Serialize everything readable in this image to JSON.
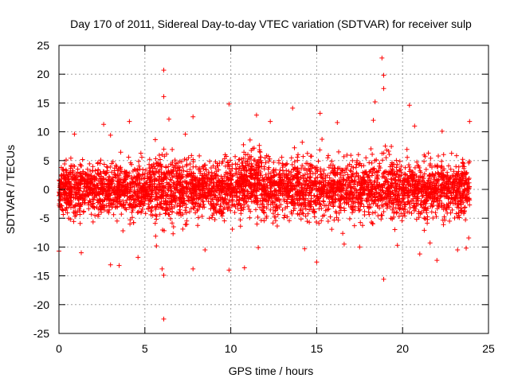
{
  "chart_data": {
    "type": "scatter",
    "title": "Day 170 of 2011, Sidereal Day-to-day VTEC variation (SDTVAR) for receiver sulp",
    "xlabel": "GPS time / hours",
    "ylabel": "SDTVAR / TECUs",
    "xlim": [
      0,
      25
    ],
    "ylim": [
      -25,
      25
    ],
    "xticks": [
      0,
      5,
      10,
      15,
      20,
      25
    ],
    "yticks": [
      -25,
      -20,
      -15,
      -10,
      -5,
      0,
      5,
      10,
      15,
      20,
      25
    ],
    "grid": true,
    "marker": "plus",
    "color": "#ff0000",
    "x_range_of_data": [
      0,
      23.9
    ],
    "typical_band": [
      -7,
      7
    ],
    "notable_points": [
      {
        "x": 6.1,
        "y": 20.7
      },
      {
        "x": 6.1,
        "y": 16.1
      },
      {
        "x": 6.1,
        "y": -22.5
      },
      {
        "x": 6.1,
        "y": -14.9
      },
      {
        "x": 6.0,
        "y": -13.8
      },
      {
        "x": 18.8,
        "y": 22.8
      },
      {
        "x": 18.9,
        "y": 19.8
      },
      {
        "x": 18.9,
        "y": 17.5
      },
      {
        "x": 18.9,
        "y": -15.6
      },
      {
        "x": 18.4,
        "y": 15.2
      },
      {
        "x": 20.4,
        "y": 14.6
      },
      {
        "x": 9.9,
        "y": 14.8
      },
      {
        "x": 13.6,
        "y": 14.1
      },
      {
        "x": 15.2,
        "y": 13.2
      },
      {
        "x": 15.0,
        "y": -12.6
      },
      {
        "x": 9.9,
        "y": -14.0
      },
      {
        "x": 7.8,
        "y": -13.8
      },
      {
        "x": 10.8,
        "y": -13.6
      },
      {
        "x": 3.0,
        "y": -13.1
      },
      {
        "x": 1.3,
        "y": -11.0
      },
      {
        "x": 0.0,
        "y": -10.7
      },
      {
        "x": 3.5,
        "y": -13.2
      },
      {
        "x": 4.6,
        "y": -11.8
      },
      {
        "x": 14.3,
        "y": -10.3
      },
      {
        "x": 17.5,
        "y": -10.0
      },
      {
        "x": 21.0,
        "y": -11.2
      },
      {
        "x": 22.0,
        "y": -12.3
      },
      {
        "x": 23.2,
        "y": -10.5
      },
      {
        "x": 23.7,
        "y": -10.2
      },
      {
        "x": 4.1,
        "y": 11.8
      },
      {
        "x": 7.8,
        "y": 12.6
      },
      {
        "x": 11.5,
        "y": 12.9
      },
      {
        "x": 16.2,
        "y": 11.6
      },
      {
        "x": 20.7,
        "y": 11.0
      },
      {
        "x": 23.9,
        "y": 11.8
      },
      {
        "x": 0.9,
        "y": 9.6
      },
      {
        "x": 3.0,
        "y": 9.4
      },
      {
        "x": 2.6,
        "y": 11.3
      },
      {
        "x": 6.4,
        "y": 12.2
      },
      {
        "x": 12.3,
        "y": 11.8
      },
      {
        "x": 18.3,
        "y": 12.0
      },
      {
        "x": 22.3,
        "y": 10.1
      },
      {
        "x": 8.5,
        "y": -10.5
      },
      {
        "x": 11.6,
        "y": -10.1
      },
      {
        "x": 16.6,
        "y": -9.5
      },
      {
        "x": 19.7,
        "y": -9.7
      },
      {
        "x": 21.6,
        "y": -9.3
      }
    ]
  }
}
